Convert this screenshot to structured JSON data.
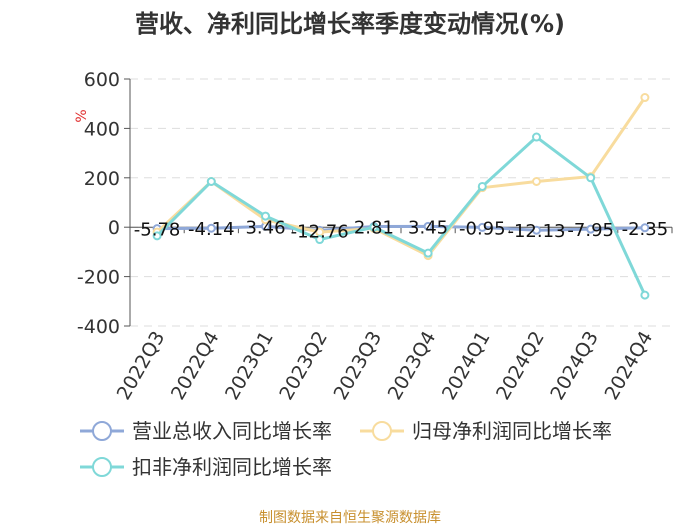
{
  "chart_data": {
    "type": "line",
    "title": "营收、净利同比增长率季度变动情况(%)",
    "ylabel": "%",
    "ylim": [
      -400,
      600
    ],
    "yticks": [
      "600",
      "400",
      "200",
      "0",
      "-200",
      "-400"
    ],
    "grid": true,
    "legend_position": "bottom",
    "categories": [
      "2022Q3",
      "2022Q4",
      "2023Q1",
      "2023Q2",
      "2023Q3",
      "2023Q4",
      "2024Q1",
      "2024Q2",
      "2024Q3",
      "2024Q4"
    ],
    "series": [
      {
        "name": "营业总收入同比增长率",
        "color": "#8fa8d8",
        "values": [
          -5.78,
          -4.14,
          3.46,
          -12.76,
          2.81,
          3.45,
          -0.95,
          -12.13,
          -7.95,
          -2.35
        ],
        "labels": [
          "-5.78",
          "-4.14",
          "3.46",
          "-12.76",
          "2.81",
          "3.45",
          "-0.95",
          "-12.13",
          "-7.95",
          "-2.35"
        ]
      },
      {
        "name": "归母净利润同比增长率",
        "color": "#f8dc9e",
        "values": [
          -20,
          185,
          30,
          -20,
          -5,
          -115,
          160,
          185,
          205,
          525
        ]
      },
      {
        "name": "扣非净利润同比增长率",
        "color": "#7fd8d8",
        "values": [
          -35,
          185,
          45,
          -50,
          0,
          -105,
          165,
          365,
          200,
          -275
        ]
      }
    ]
  },
  "footer": {
    "source": "制图数据来自恒生聚源数据库"
  }
}
